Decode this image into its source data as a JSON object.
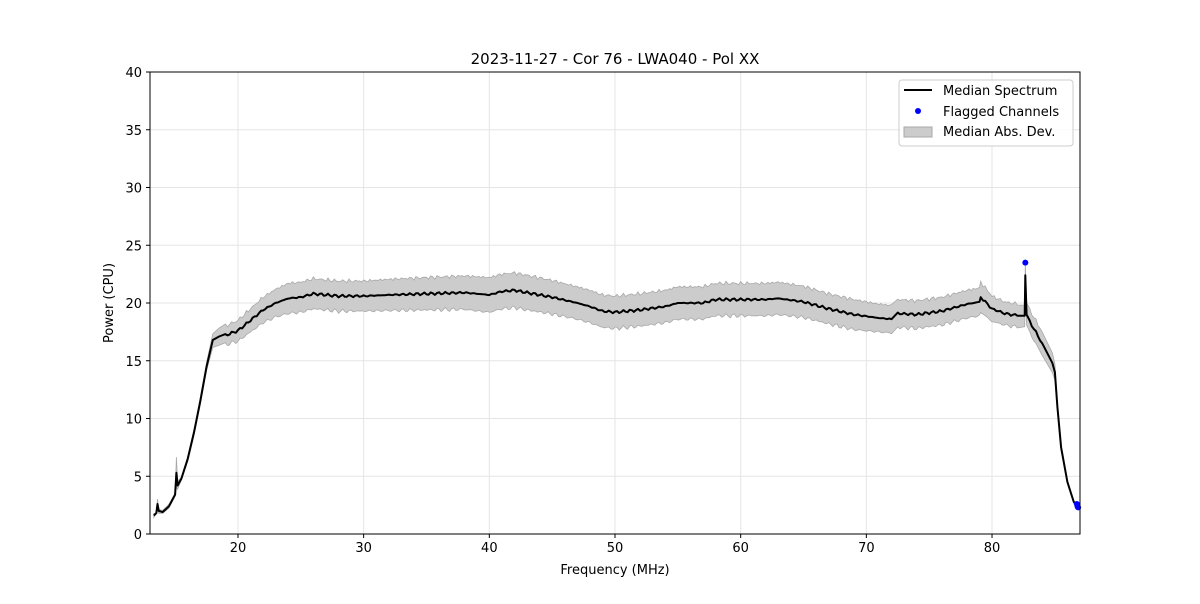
{
  "chart_data": {
    "type": "line",
    "title": "2023-11-27 - Cor 76 - LWA040 - Pol XX",
    "xlabel": "Frequency (MHz)",
    "ylabel": "Power (CPU)",
    "xlim": [
      13,
      87
    ],
    "ylim": [
      0,
      40
    ],
    "xticks": [
      20,
      30,
      40,
      50,
      60,
      70,
      80
    ],
    "yticks": [
      0,
      5,
      10,
      15,
      20,
      25,
      30,
      35,
      40
    ],
    "grid": true,
    "legend_position": "top-right",
    "legend": [
      "Median Spectrum",
      "Flagged Channels",
      "Median Abs. Dev."
    ],
    "colors": {
      "line": "#000000",
      "flagged": "#0000ff",
      "band": "#cccccc",
      "band_edge": "#a0a0a0",
      "grid": "#e5e5e5"
    },
    "median_spectrum": {
      "x": [
        13.3,
        13.5,
        13.6,
        13.7,
        14.0,
        14.5,
        15.0,
        15.1,
        15.2,
        15.5,
        16.0,
        16.5,
        17.0,
        17.5,
        18.0,
        18.5,
        19,
        20,
        21,
        22,
        23,
        24,
        25,
        26,
        27,
        28,
        30,
        32,
        35,
        38,
        40,
        41,
        42,
        43,
        45,
        47,
        48,
        49,
        50,
        52,
        54,
        55,
        57,
        58,
        60,
        62,
        63,
        65,
        67,
        69,
        71,
        72,
        72.5,
        74,
        76,
        78,
        79,
        79.1,
        80,
        81,
        82,
        82.6,
        82.65,
        82.75,
        83,
        84,
        84.8,
        85.0,
        85.2,
        85.5,
        86,
        86.5,
        86.8,
        86.9
      ],
      "y": [
        1.6,
        1.8,
        2.6,
        2.0,
        1.9,
        2.4,
        3.4,
        5.3,
        4.2,
        4.8,
        6.5,
        8.8,
        11.5,
        14.5,
        16.8,
        17.1,
        17.2,
        17.6,
        18.5,
        19.4,
        20.0,
        20.4,
        20.5,
        20.8,
        20.7,
        20.6,
        20.6,
        20.7,
        20.8,
        20.9,
        20.7,
        21.0,
        21.1,
        20.9,
        20.5,
        20.0,
        19.7,
        19.3,
        19.2,
        19.4,
        19.7,
        20.0,
        20.0,
        20.3,
        20.3,
        20.3,
        20.4,
        20.1,
        19.5,
        19.0,
        18.7,
        18.6,
        19.1,
        19.0,
        19.3,
        19.9,
        20.1,
        20.5,
        19.5,
        19.1,
        18.9,
        18.9,
        22.4,
        19.0,
        18.4,
        16.5,
        14.8,
        14.0,
        11.0,
        7.5,
        4.5,
        2.8,
        2.3,
        2.2
      ],
      "mad": [
        0.1,
        0.1,
        0.5,
        0.15,
        0.1,
        0.1,
        0.15,
        1.3,
        0.3,
        0.2,
        0.2,
        0.2,
        0.3,
        0.4,
        0.6,
        0.7,
        0.8,
        0.9,
        1.0,
        1.1,
        1.2,
        1.3,
        1.3,
        1.3,
        1.3,
        1.3,
        1.3,
        1.35,
        1.4,
        1.45,
        1.5,
        1.5,
        1.5,
        1.5,
        1.45,
        1.4,
        1.4,
        1.4,
        1.4,
        1.4,
        1.4,
        1.4,
        1.4,
        1.4,
        1.4,
        1.4,
        1.4,
        1.35,
        1.3,
        1.3,
        1.2,
        1.2,
        1.2,
        1.2,
        1.2,
        1.2,
        1.2,
        1.3,
        1.1,
        1.0,
        1.0,
        1.0,
        1.0,
        1.0,
        1.0,
        1.0,
        0.8,
        0.7,
        0.3,
        0.2,
        0.1,
        0.1,
        0.1,
        0.1
      ]
    },
    "flagged_channels": {
      "x": [
        82.65,
        86.75,
        86.8,
        86.85
      ],
      "y": [
        23.5,
        2.6,
        2.4,
        2.3
      ]
    }
  }
}
